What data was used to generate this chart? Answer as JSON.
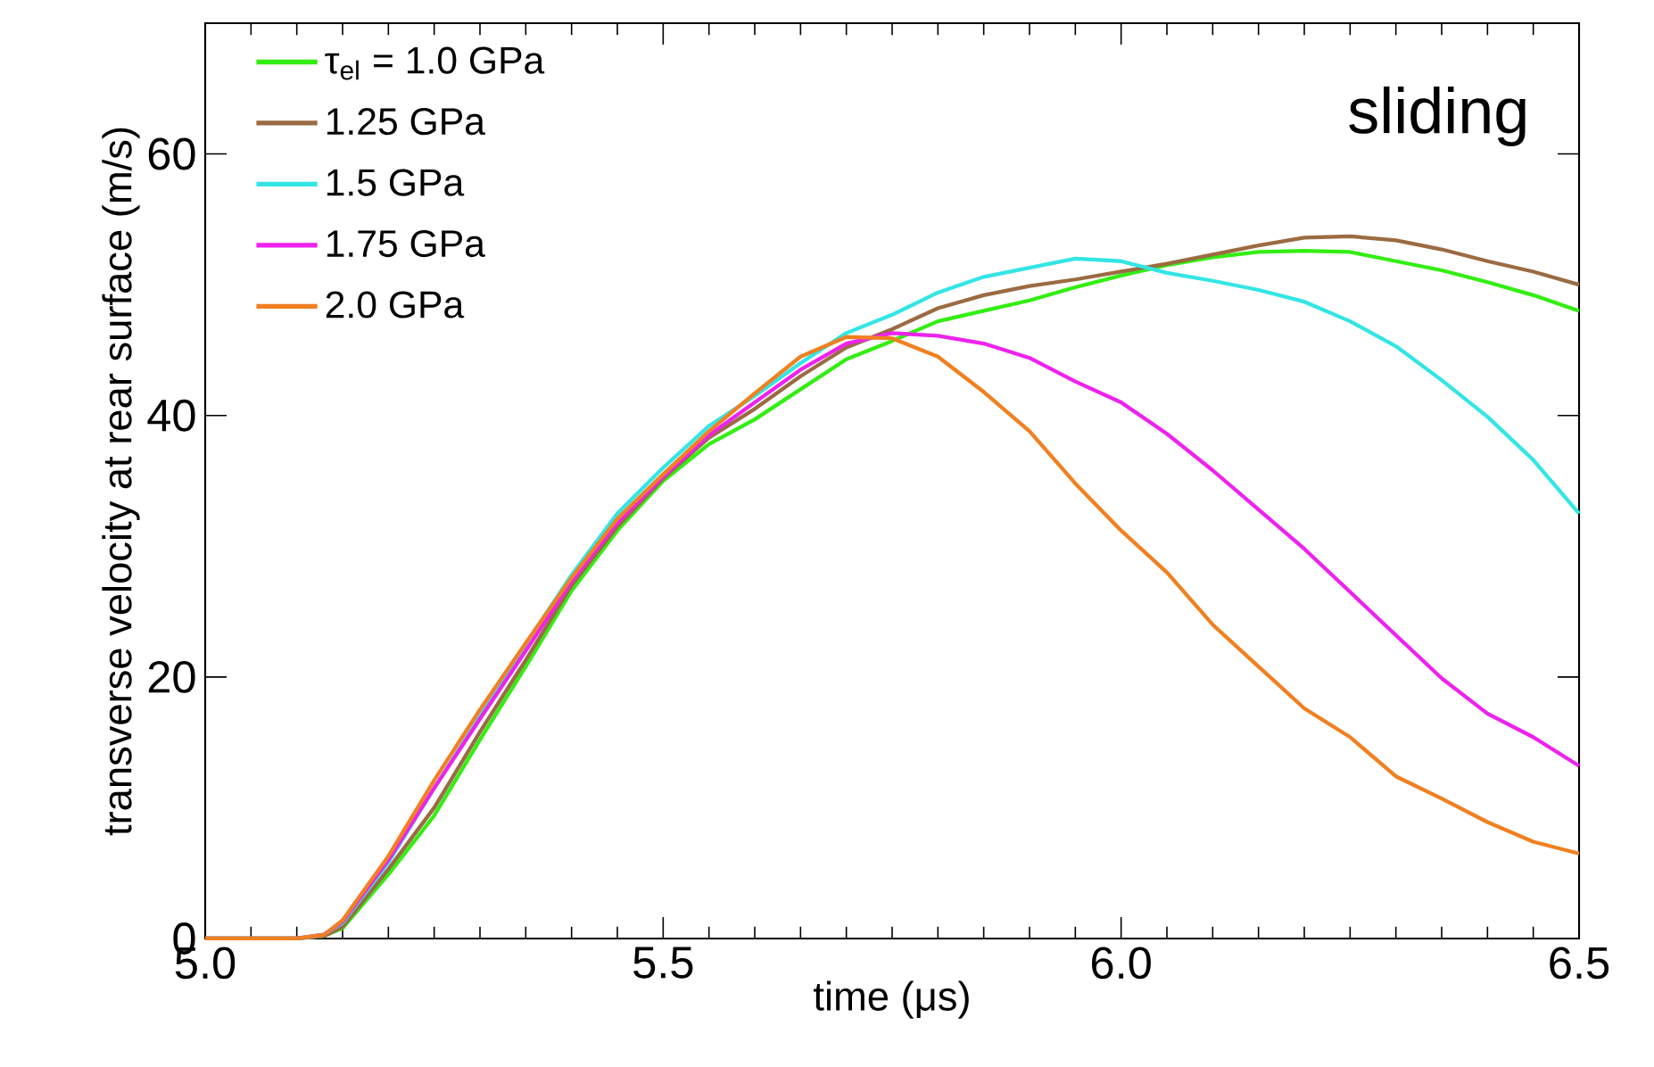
{
  "chart_data": {
    "type": "line",
    "xlabel": "time (μs)",
    "ylabel": "transverse velocity at rear surface (m/s)",
    "annotations": [
      "sliding"
    ],
    "x": [
      5.0,
      5.1,
      5.13,
      5.15,
      5.2,
      5.25,
      5.3,
      5.35,
      5.4,
      5.45,
      5.5,
      5.55,
      5.6,
      5.65,
      5.7,
      5.75,
      5.8,
      5.85,
      5.9,
      5.95,
      6.0,
      6.05,
      6.1,
      6.15,
      6.2,
      6.25,
      6.3,
      6.35,
      6.4,
      6.45,
      6.5
    ],
    "series": [
      {
        "name": "τ$_{el}$ = 1.0 GPa",
        "color": "#33ee11",
        "values": [
          0,
          0,
          0.2,
          0.8,
          4.9,
          9.4,
          15.2,
          20.8,
          26.6,
          31.2,
          35.0,
          37.8,
          39.7,
          42.0,
          44.3,
          45.7,
          47.2,
          48.0,
          48.8,
          49.8,
          50.7,
          51.5,
          52.1,
          52.5,
          52.6,
          52.5,
          51.8,
          51.1,
          50.2,
          49.2,
          48.0
        ]
      },
      {
        "name": "1.25 GPa",
        "color": "#9b6b42",
        "values": [
          0,
          0,
          0.2,
          0.9,
          5.3,
          10.0,
          15.8,
          21.3,
          27.0,
          31.5,
          35.2,
          38.3,
          40.5,
          43.0,
          45.2,
          46.6,
          48.2,
          49.2,
          49.9,
          50.4,
          51.0,
          51.6,
          52.3,
          53.0,
          53.6,
          53.7,
          53.4,
          52.7,
          51.8,
          51.0,
          50.0
        ]
      },
      {
        "name": "1.5 GPa",
        "color": "#33e5e5",
        "values": [
          0,
          0,
          0.3,
          1.2,
          5.8,
          11.5,
          17.0,
          22.5,
          27.8,
          32.5,
          36.0,
          39.2,
          41.5,
          44.0,
          46.3,
          47.7,
          49.4,
          50.6,
          51.3,
          52.0,
          51.8,
          50.9,
          50.3,
          49.6,
          48.7,
          47.2,
          45.3,
          42.7,
          39.9,
          36.6,
          32.5
        ]
      },
      {
        "name": "1.75 GPa",
        "color": "#ee22ee",
        "values": [
          0,
          0,
          0.3,
          1.3,
          6.0,
          11.5,
          16.8,
          22.0,
          27.3,
          31.8,
          35.3,
          38.5,
          41.0,
          43.5,
          45.5,
          46.3,
          46.1,
          45.5,
          44.4,
          42.6,
          41.0,
          38.6,
          35.8,
          32.8,
          29.8,
          26.5,
          23.2,
          19.9,
          17.2,
          15.4,
          13.2
        ]
      },
      {
        "name": "2.0 GPa",
        "color": "#f08020",
        "values": [
          0,
          0,
          0.3,
          1.4,
          6.3,
          12.1,
          17.5,
          22.6,
          27.6,
          32.1,
          35.5,
          38.8,
          41.7,
          44.5,
          46.0,
          45.9,
          44.5,
          41.8,
          38.8,
          34.8,
          31.2,
          28.0,
          24.0,
          20.8,
          17.6,
          15.4,
          12.4,
          10.7,
          8.9,
          7.4,
          6.5
        ]
      }
    ],
    "xlim": [
      5.0,
      6.5
    ],
    "xticks": [
      {
        "value": 5.0,
        "label": "5.0"
      },
      5.5,
      {
        "value": 6.0,
        "label": "6.0"
      },
      6.5
    ],
    "ylim": [
      0,
      70
    ],
    "yticks": [
      0,
      20,
      40,
      60
    ],
    "legend": "top left",
    "marker": "none",
    "line_style": "solid"
  }
}
